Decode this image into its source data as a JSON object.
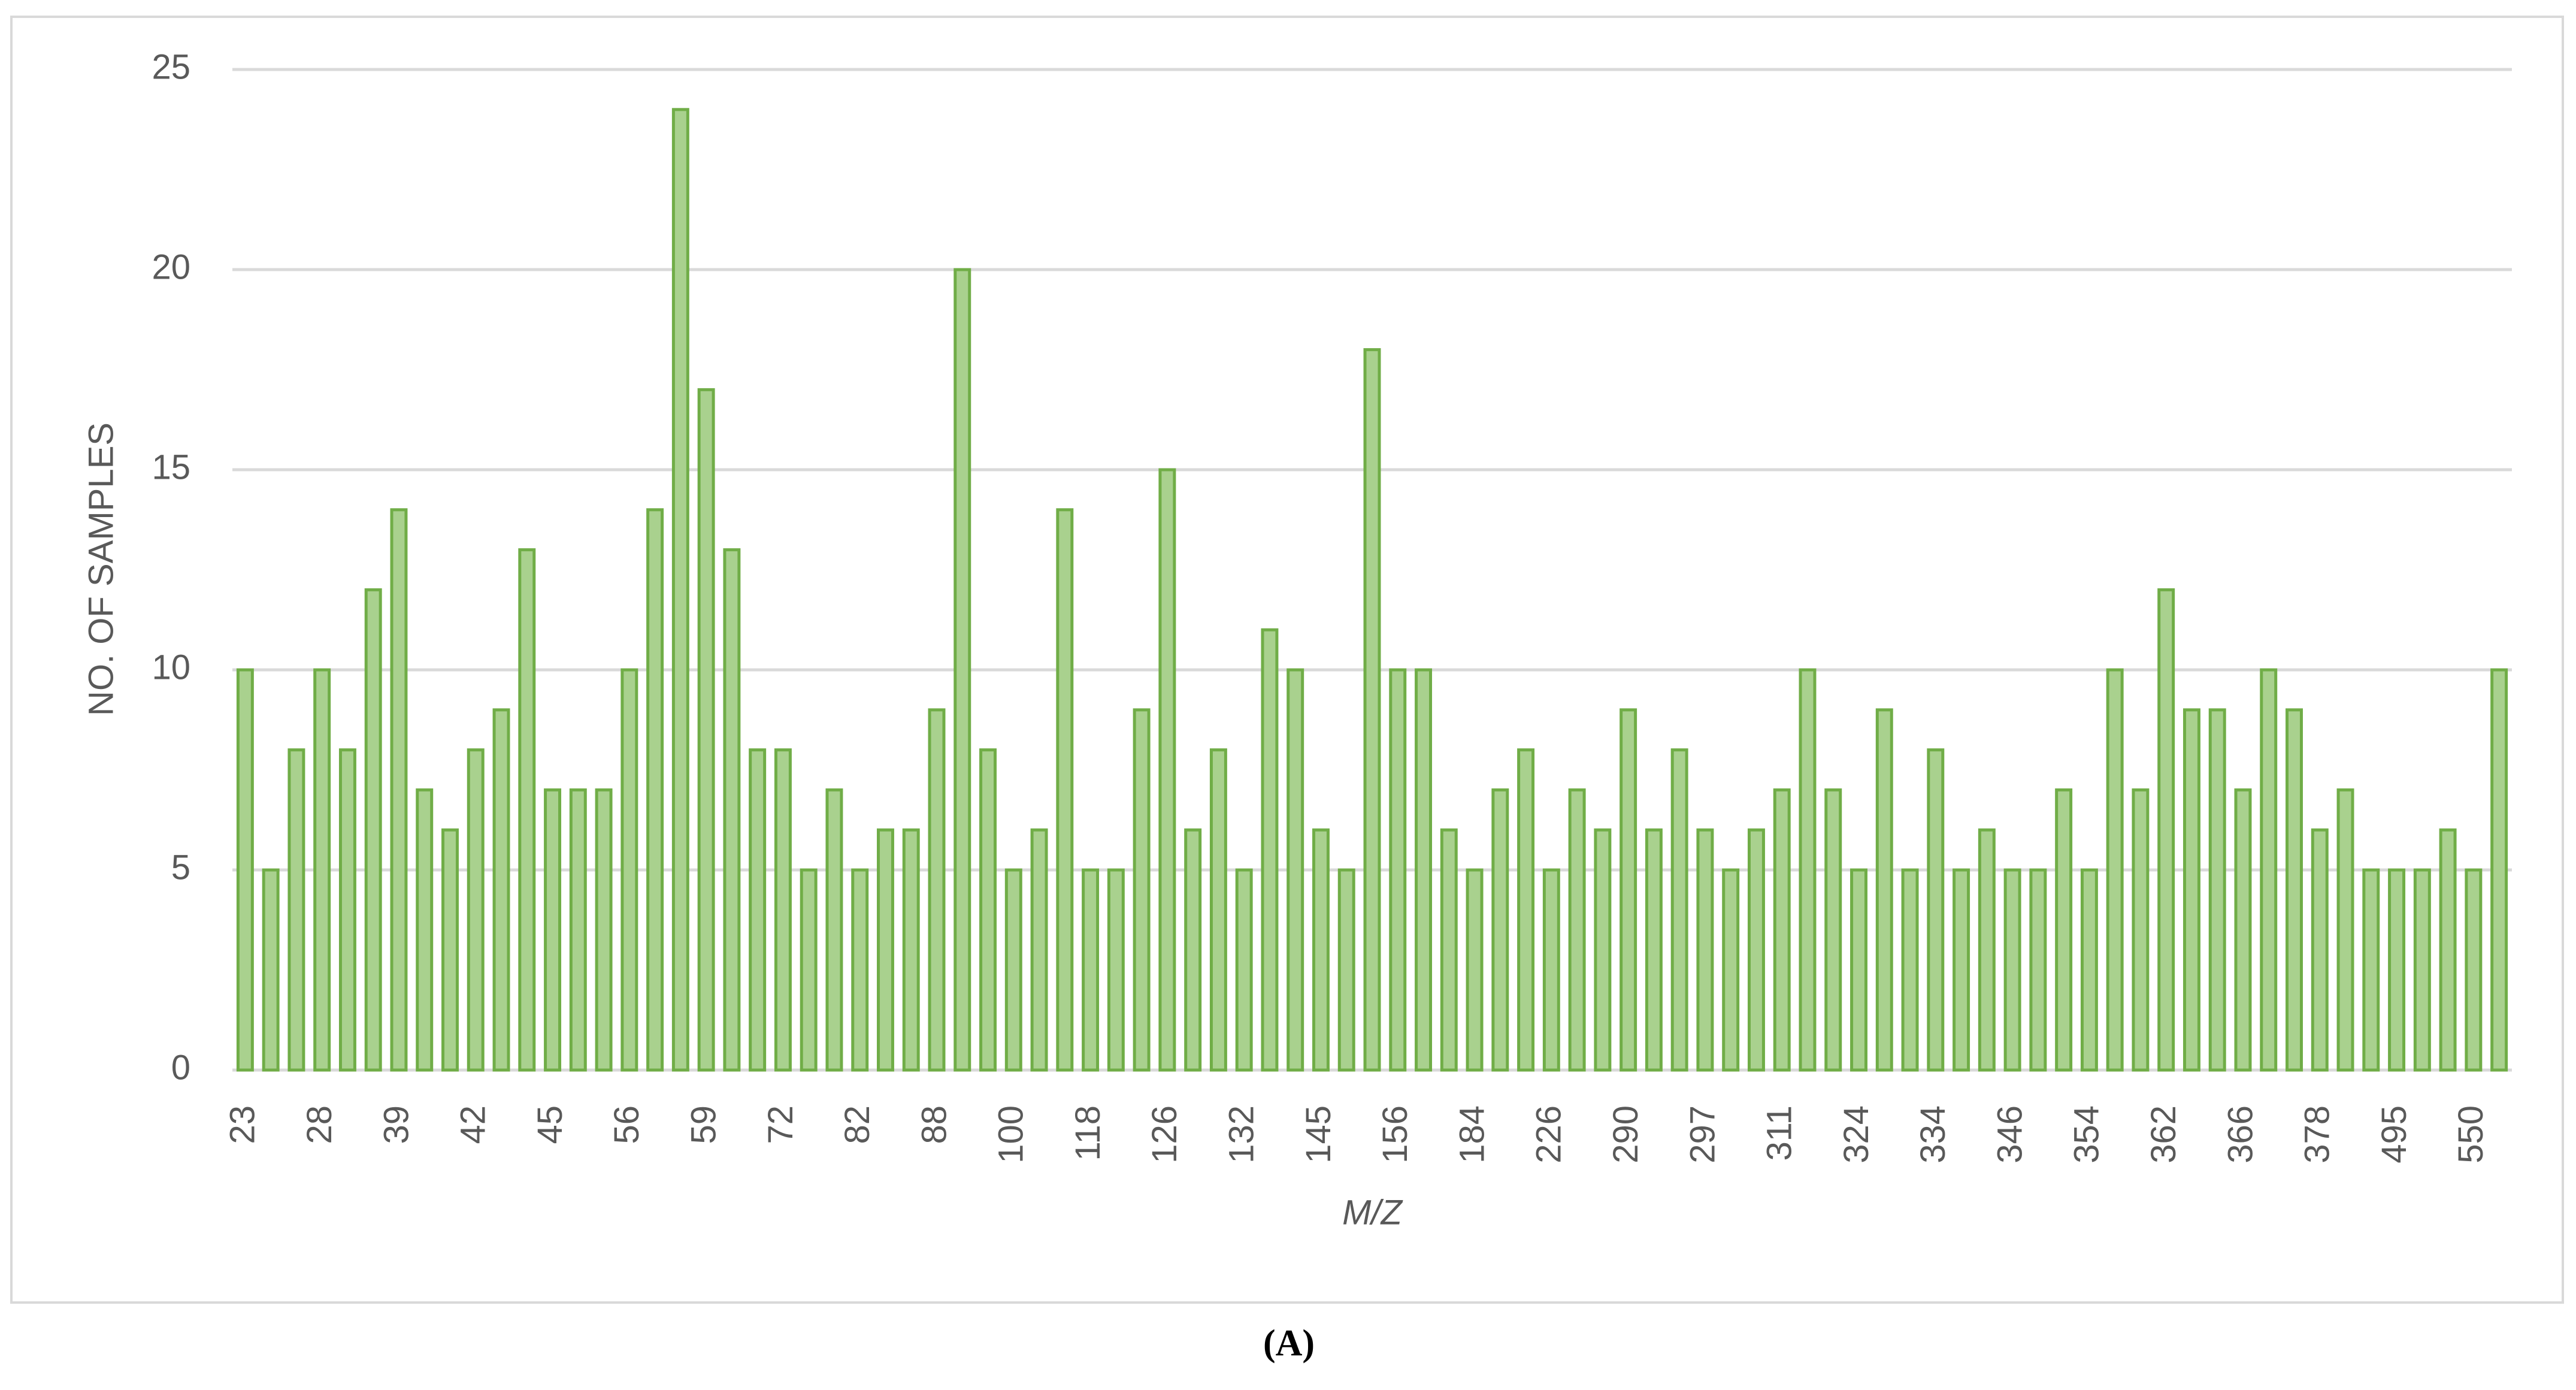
{
  "chart_data": {
    "type": "bar",
    "caption": "(A)",
    "x_label": "M/Z",
    "y_label": "NO. OF SAMPLES",
    "categories": [
      "23",
      null,
      null,
      "28",
      null,
      null,
      "39",
      null,
      null,
      "42",
      null,
      null,
      "45",
      null,
      null,
      "56",
      null,
      null,
      "59",
      null,
      null,
      "72",
      null,
      null,
      "82",
      null,
      null,
      "88",
      null,
      null,
      "100",
      null,
      null,
      "118",
      null,
      null,
      "126",
      null,
      null,
      "132",
      null,
      null,
      "145",
      null,
      null,
      "156",
      null,
      null,
      "184",
      null,
      null,
      "226",
      null,
      null,
      "290",
      null,
      null,
      "297",
      null,
      null,
      "311",
      null,
      null,
      "324",
      null,
      null,
      "334",
      null,
      null,
      "346",
      null,
      null,
      "354",
      null,
      null,
      "362",
      null,
      null,
      "366",
      null,
      null,
      "378",
      null,
      null,
      "495",
      null,
      null,
      "550",
      null
    ],
    "values": [
      10,
      5,
      8,
      10,
      8,
      12,
      14,
      7,
      6,
      8,
      9,
      13,
      7,
      7,
      7,
      10,
      14,
      24,
      17,
      13,
      8,
      8,
      5,
      7,
      5,
      6,
      6,
      9,
      20,
      8,
      5,
      6,
      14,
      5,
      5,
      9,
      15,
      6,
      8,
      5,
      11,
      10,
      6,
      5,
      18,
      10,
      10,
      6,
      5,
      7,
      8,
      5,
      7,
      6,
      9,
      6,
      8,
      6,
      5,
      6,
      7,
      10,
      7,
      5,
      9,
      5,
      8,
      5,
      6,
      5,
      5,
      7,
      5,
      10,
      7,
      12,
      9,
      9,
      7,
      10,
      9,
      6,
      7,
      5,
      5,
      5,
      6,
      5,
      10
    ],
    "color": "#a9d18e",
    "edge_color": "#70ad47",
    "ylim": [
      0,
      25
    ],
    "yticks": [
      0,
      5,
      10,
      15,
      20,
      25
    ],
    "grid": true
  }
}
